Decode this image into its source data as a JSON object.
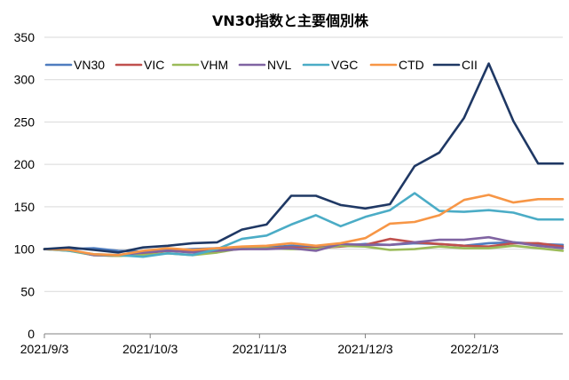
{
  "chart_data": {
    "type": "line",
    "title": "VN30指数と主要個別株",
    "xlabel": "",
    "ylabel": "",
    "ylim": [
      0,
      350
    ],
    "yticks": [
      "0",
      "50",
      "100",
      "150",
      "200",
      "250",
      "300",
      "350"
    ],
    "xticks": [
      "2021/9/3",
      "2021/10/3",
      "2021/11/3",
      "2021/12/3",
      "2022/1/3"
    ],
    "x": [
      "2021/9/3",
      "2021/9/10",
      "2021/9/17",
      "2021/9/24",
      "2021/10/1",
      "2021/10/8",
      "2021/10/15",
      "2021/10/22",
      "2021/10/29",
      "2021/11/5",
      "2021/11/12",
      "2021/11/19",
      "2021/11/26",
      "2021/12/3",
      "2021/12/10",
      "2021/12/17",
      "2021/12/24",
      "2021/12/31",
      "2022/1/7",
      "2022/1/14",
      "2022/1/21",
      "2022/1/28"
    ],
    "grid": true,
    "legend_position": "top",
    "series": [
      {
        "name": "VN30",
        "color": "#4f7dbf",
        "values": [
          100,
          100,
          101,
          98,
          97,
          99,
          100,
          101,
          101,
          102,
          104,
          103,
          104,
          106,
          105,
          107,
          106,
          104,
          107,
          108,
          106,
          105
        ]
      },
      {
        "name": "VIC",
        "color": "#c0504d",
        "values": [
          100,
          99,
          93,
          92,
          95,
          98,
          97,
          99,
          100,
          101,
          102,
          101,
          103,
          105,
          112,
          108,
          106,
          104,
          103,
          107,
          107,
          103
        ]
      },
      {
        "name": "VHM",
        "color": "#9bbb59",
        "values": [
          100,
          98,
          93,
          92,
          93,
          95,
          93,
          96,
          101,
          101,
          100,
          100,
          104,
          103,
          99,
          100,
          103,
          101,
          101,
          104,
          101,
          98
        ]
      },
      {
        "name": "NVL",
        "color": "#8064a2",
        "values": [
          100,
          99,
          93,
          93,
          96,
          98,
          96,
          98,
          100,
          100,
          101,
          98,
          106,
          105,
          105,
          108,
          111,
          111,
          114,
          108,
          104,
          101
        ]
      },
      {
        "name": "VGC",
        "color": "#4bacc6",
        "values": [
          100,
          98,
          94,
          93,
          91,
          95,
          93,
          100,
          112,
          116,
          129,
          140,
          127,
          138,
          146,
          166,
          145,
          144,
          146,
          143,
          135,
          135
        ]
      },
      {
        "name": "CTD",
        "color": "#f79646",
        "values": [
          100,
          99,
          94,
          93,
          98,
          101,
          99,
          101,
          103,
          104,
          107,
          104,
          107,
          113,
          130,
          132,
          140,
          158,
          164,
          155,
          159,
          159
        ]
      },
      {
        "name": "CII",
        "color": "#1f3864",
        "values": [
          100,
          102,
          99,
          96,
          102,
          104,
          107,
          108,
          123,
          129,
          163,
          163,
          152,
          148,
          153,
          198,
          214,
          255,
          319,
          251,
          201,
          201
        ]
      }
    ]
  }
}
